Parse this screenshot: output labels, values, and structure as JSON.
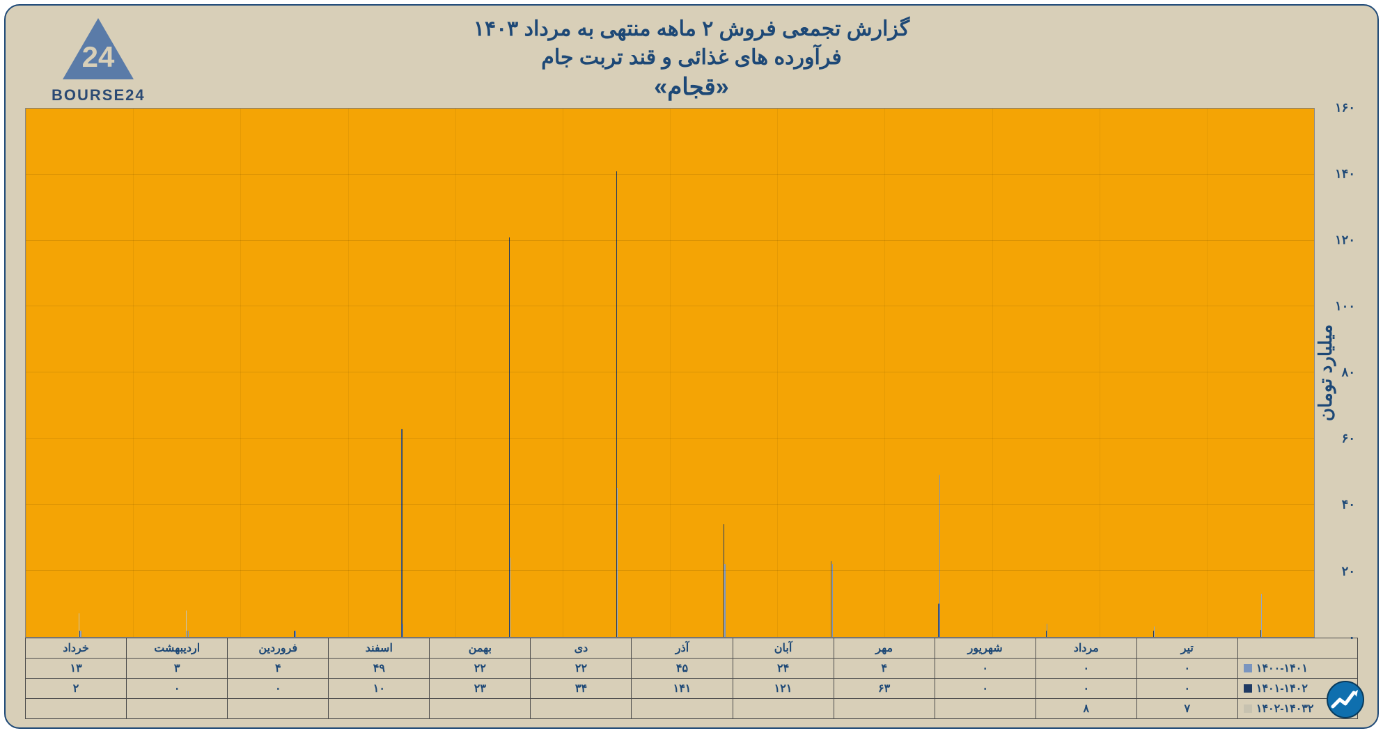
{
  "brand": {
    "name": "BOURSE24",
    "triangle_color": "#5a7ba8",
    "text_color": "#2b4a73"
  },
  "title": {
    "line1": "گزارش تجمعی فروش ۲ ماهه منتهی به مرداد ۱۴۰۳",
    "line2": "فرآورده های غذائی و قند تربت جام",
    "line3": "«قجام»",
    "color": "#1d4876",
    "fontsize_main": 30,
    "fontsize_emph": 34
  },
  "chart": {
    "type": "bar",
    "background_color": "#f4a405",
    "frame_background": "#d8cfb8",
    "border_color": "#1d4876",
    "yaxis_label": "میلیارد تومان",
    "ylim": [
      0,
      160
    ],
    "ytick_step": 20,
    "ytick_labels": [
      "۰",
      "۲۰",
      "۴۰",
      "۶۰",
      "۸۰",
      "۱۰۰",
      "۱۲۰",
      "۱۴۰",
      "۱۶۰"
    ],
    "grid_color": "rgba(0,0,0,0.10)",
    "categories": [
      "تیر",
      "مرداد",
      "شهریور",
      "مهر",
      "آبان",
      "آذر",
      "دی",
      "بهمن",
      "اسفند",
      "فروردین",
      "اردیبهشت",
      "خرداد"
    ],
    "series": [
      {
        "name": "۱۴۰۰-۱۴۰۱",
        "color": "#7a95bf",
        "values": [
          0,
          0,
          0,
          4,
          24,
          45,
          22,
          22,
          49,
          4,
          3,
          13
        ],
        "display": [
          "۰",
          "۰",
          "۰",
          "۴",
          "۲۴",
          "۴۵",
          "۲۲",
          "۲۲",
          "۴۹",
          "۴",
          "۳",
          "۱۳"
        ]
      },
      {
        "name": "۱۴۰۱-۱۴۰۲",
        "color": "#1f3a63",
        "values": [
          0,
          0,
          0,
          63,
          121,
          141,
          34,
          23,
          10,
          0,
          0,
          2
        ],
        "display": [
          "۰",
          "۰",
          "۰",
          "۶۳",
          "۱۲۱",
          "۱۴۱",
          "۳۴",
          "۲۳",
          "۱۰",
          "۰",
          "۰",
          "۲"
        ]
      },
      {
        "name": "۱۴۰۲-۱۴۰۳۲",
        "color": "#c7c2b0",
        "values": [
          7,
          8,
          null,
          null,
          null,
          null,
          null,
          null,
          null,
          null,
          null,
          null
        ],
        "display": [
          "۷",
          "۸",
          "",
          "",
          "",
          "",
          "",
          "",
          "",
          "",
          "",
          ""
        ]
      }
    ]
  },
  "corner_badge": {
    "bg": "#0f6fae",
    "arrow": "#ffffff"
  }
}
